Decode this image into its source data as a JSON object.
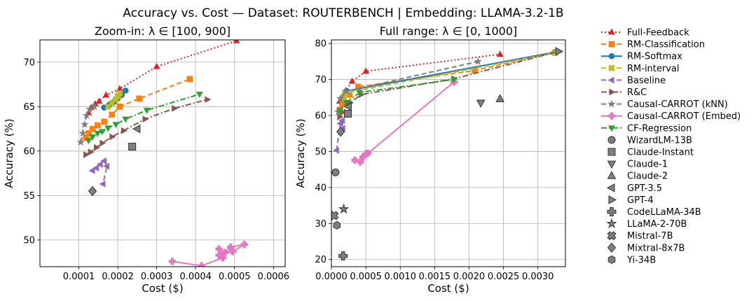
{
  "figure": {
    "suptitle": "Accuracy vs. Cost — Dataset: ROUTERBENCH | Embedding: LLAMA-3.2-1B"
  },
  "chart_data": [
    {
      "type": "line",
      "title": "Zoom-in: λ ∈ [100, 900]",
      "xlabel": "Cost ($)",
      "ylabel": "Accuracy (%)",
      "xlim": [
        0.0,
        0.00063
      ],
      "ylim": [
        47,
        72.5
      ],
      "xticks": [
        0.0001,
        0.0002,
        0.0003,
        0.0004,
        0.0005,
        0.0006
      ],
      "xtick_labels": [
        "0.0001",
        "0.0002",
        "0.0003",
        "0.0004",
        "0.0005",
        "0.0006"
      ],
      "yticks": [
        50,
        55,
        60,
        65,
        70
      ],
      "ytick_labels": [
        "50",
        "55",
        "60",
        "65",
        "70"
      ],
      "grid": true,
      "series": [
        {
          "name": "Full-Feedback",
          "color": "#d62728",
          "style": "dotted",
          "marker": "triangle-up",
          "points": [
            [
              0.000125,
              64.3
            ],
            [
              0.000132,
              64.9
            ],
            [
              0.000142,
              65.3
            ],
            [
              0.000152,
              65.6
            ],
            [
              0.00017,
              66.3
            ],
            [
              0.000205,
              67.0
            ],
            [
              0.0003,
              69.5
            ],
            [
              0.000505,
              72.4
            ]
          ]
        },
        {
          "name": "RM-Classification",
          "color": "#ff7f0e",
          "style": "dashed",
          "marker": "square",
          "points": [
            [
              0.000118,
              61.5
            ],
            [
              0.000125,
              62.0
            ],
            [
              0.000135,
              62.5
            ],
            [
              0.000148,
              62.9
            ],
            [
              0.000165,
              63.3
            ],
            [
              0.000185,
              64.1
            ],
            [
              0.000205,
              65.0
            ],
            [
              0.000255,
              65.9
            ],
            [
              0.000385,
              68.1
            ]
          ]
        },
        {
          "name": "RM-Softmax",
          "color": "#1f77b4",
          "style": "solid",
          "marker": "circle",
          "points": [
            [
              0.000165,
              64.9
            ],
            [
              0.000178,
              65.2
            ],
            [
              0.00019,
              65.5
            ],
            [
              0.0002,
              65.9
            ],
            [
              0.00021,
              66.3
            ],
            [
              0.00022,
              66.8
            ]
          ]
        },
        {
          "name": "RM-interval",
          "color": "#bcbd22",
          "style": "dashed",
          "marker": "x",
          "points": [
            [
              0.000175,
              65.0
            ],
            [
              0.000185,
              65.4
            ],
            [
              0.000195,
              65.8
            ],
            [
              0.0002,
              66.2
            ],
            [
              0.000205,
              66.5
            ]
          ]
        },
        {
          "name": "Baseline",
          "color": "#9467bd",
          "style": "dashed",
          "marker": "triangle-left",
          "points": [
            [
              0.000135,
              57.8
            ],
            [
              0.000145,
              58.1
            ],
            [
              0.000155,
              58.5
            ],
            [
              0.000165,
              58.9
            ],
            [
              0.000172,
              58.3
            ],
            [
              0.000162,
              56.3
            ]
          ]
        },
        {
          "name": "R&C",
          "color": "#8c564b",
          "style": "dashdot",
          "marker": "triangle-right",
          "points": [
            [
              0.000118,
              59.6
            ],
            [
              0.00013,
              59.9
            ],
            [
              0.000145,
              60.4
            ],
            [
              0.00016,
              60.9
            ],
            [
              0.000185,
              61.6
            ],
            [
              0.000215,
              62.3
            ],
            [
              0.00027,
              63.6
            ],
            [
              0.000345,
              64.8
            ],
            [
              0.00043,
              65.8
            ]
          ]
        },
        {
          "name": "Causal-CARROT (kNN)",
          "color": "#7f7f7f",
          "style": "dashed",
          "marker": "star",
          "points": [
            [
              0.000105,
              61.0
            ],
            [
              0.00011,
              62.0
            ],
            [
              0.000115,
              63.0
            ],
            [
              0.00012,
              64.0
            ],
            [
              0.000128,
              64.7
            ],
            [
              0.00014,
              65.0
            ]
          ]
        },
        {
          "name": "Causal-CARROT (Embed)",
          "color": "#e377c2",
          "style": "solid",
          "marker": "plus",
          "points": [
            [
              0.00034,
              47.6
            ],
            [
              0.000415,
              47.1
            ],
            [
              0.00047,
              48.0
            ],
            [
              0.00046,
              49.0
            ],
            [
              0.000475,
              48.6
            ],
            [
              0.00049,
              49.2
            ],
            [
              0.000525,
              49.5
            ],
            [
              0.000495,
              48.7
            ],
            [
              0.00046,
              48.3
            ]
          ]
        },
        {
          "name": "CF-Regression",
          "color": "#2ca02c",
          "style": "dashdot",
          "marker": "triangle-down",
          "points": [
            [
              0.000125,
              61.2
            ],
            [
              0.000135,
              61.6
            ],
            [
              0.000148,
              62.0
            ],
            [
              0.00016,
              62.2
            ],
            [
              0.000175,
              62.6
            ],
            [
              0.000195,
              63.0
            ],
            [
              0.00022,
              63.6
            ],
            [
              0.000275,
              64.6
            ],
            [
              0.00041,
              66.4
            ]
          ]
        }
      ],
      "single_points": [
        {
          "name": "Claude-Instant",
          "marker": "square",
          "x": 0.000237,
          "y": 60.5
        },
        {
          "name": "GPT-3.5",
          "marker": "triangle-left",
          "x": 0.00025,
          "y": 62.5
        },
        {
          "name": "Mixtral-8x7B",
          "marker": "diamond",
          "x": 0.000135,
          "y": 55.5
        }
      ]
    },
    {
      "type": "line",
      "title": "Full range: λ ∈ [0, 1000]",
      "xlabel": "Cost ($)",
      "ylabel": "Accuracy (%)",
      "xlim": [
        0.0,
        0.0034
      ],
      "ylim": [
        18,
        81
      ],
      "xticks": [
        0.0,
        0.0005,
        0.001,
        0.0015,
        0.002,
        0.0025,
        0.003
      ],
      "xtick_labels": [
        "0.0000",
        "0.0005",
        "0.0010",
        "0.0015",
        "0.0020",
        "0.0025",
        "0.0030"
      ],
      "yticks": [
        20,
        30,
        40,
        50,
        60,
        70,
        80
      ],
      "ytick_labels": [
        "20",
        "30",
        "40",
        "50",
        "60",
        "70",
        "80"
      ],
      "grid": true,
      "series": [
        {
          "name": "Full-Feedback",
          "color": "#d62728",
          "style": "dotted",
          "marker": "triangle-up",
          "points": [
            [
              0.00012,
              64.0
            ],
            [
              0.00016,
              65.3
            ],
            [
              0.00021,
              66.9
            ],
            [
              0.0003,
              69.5
            ],
            [
              0.0005,
              72.3
            ],
            [
              0.00245,
              77.0
            ]
          ]
        },
        {
          "name": "RM-Classification",
          "color": "#ff7f0e",
          "style": "dashed",
          "marker": "square",
          "points": [
            [
              0.00012,
              61.6
            ],
            [
              0.00016,
              63.2
            ],
            [
              0.00026,
              65.8
            ],
            [
              0.00039,
              68.0
            ],
            [
              0.00208,
              72.5
            ],
            [
              0.00325,
              77.5
            ]
          ]
        },
        {
          "name": "RM-Softmax",
          "color": "#1f77b4",
          "style": "solid",
          "marker": "circle",
          "points": [
            [
              0.00017,
              65.0
            ],
            [
              0.00022,
              66.8
            ],
            [
              0.00325,
              77.6
            ]
          ]
        },
        {
          "name": "RM-interval",
          "color": "#bcbd22",
          "style": "dashed",
          "marker": "x",
          "points": [
            [
              0.00018,
              65.0
            ],
            [
              0.0002,
              66.2
            ],
            [
              0.00324,
              77.4
            ]
          ]
        },
        {
          "name": "Baseline",
          "color": "#9467bd",
          "style": "dashed",
          "marker": "triangle-left",
          "points": [
            [
              7.5e-05,
              50.3
            ],
            [
              0.00013,
              57.8
            ],
            [
              0.00016,
              58.6
            ],
            [
              0.000165,
              56.4
            ]
          ]
        },
        {
          "name": "R&C",
          "color": "#8c564b",
          "style": "dashdot",
          "marker": "triangle-right",
          "points": [
            [
              0.00012,
              59.6
            ],
            [
              0.00016,
              60.9
            ],
            [
              0.00027,
              63.5
            ],
            [
              0.00043,
              65.8
            ],
            [
              0.00178,
              70.2
            ],
            [
              0.0033,
              77.8
            ]
          ]
        },
        {
          "name": "Causal-CARROT (kNN)",
          "color": "#7f7f7f",
          "style": "dashed",
          "marker": "star",
          "points": [
            [
              0.0001,
              61.0
            ],
            [
              0.00013,
              64.7
            ],
            [
              0.00021,
              66.7
            ],
            [
              0.00213,
              75.0
            ]
          ]
        },
        {
          "name": "Causal-CARROT (Embed)",
          "color": "#e377c2",
          "style": "solid",
          "marker": "plus",
          "points": [
            [
              0.00034,
              47.6
            ],
            [
              0.00042,
              47.1
            ],
            [
              0.00046,
              48.5
            ],
            [
              0.0005,
              49.3
            ],
            [
              0.00053,
              49.5
            ],
            [
              0.00178,
              69.3
            ]
          ]
        },
        {
          "name": "CF-Regression",
          "color": "#2ca02c",
          "style": "dashdot",
          "marker": "triangle-down",
          "points": [
            [
              0.00012,
              61.2
            ],
            [
              0.00022,
              63.6
            ],
            [
              0.00041,
              66.4
            ],
            [
              0.00178,
              70.0
            ]
          ]
        }
      ],
      "single_points": [
        {
          "name": "WizardLM-13B",
          "marker": "circle",
          "x": 6e-05,
          "y": 44.2
        },
        {
          "name": "Claude-Instant",
          "marker": "square",
          "x": 0.00024,
          "y": 60.5
        },
        {
          "name": "Claude-1",
          "marker": "triangle-down",
          "x": 0.00217,
          "y": 63.5
        },
        {
          "name": "Claude-2",
          "marker": "triangle-up",
          "x": 0.00245,
          "y": 64.6
        },
        {
          "name": "GPT-3.5",
          "marker": "triangle-left",
          "x": 0.00025,
          "y": 62.5
        },
        {
          "name": "GPT-4",
          "marker": "triangle-right",
          "x": 0.0033,
          "y": 77.8
        },
        {
          "name": "CodeLLaMA-34B",
          "marker": "plus",
          "x": 0.00017,
          "y": 21.0
        },
        {
          "name": "LLaMA-2-70B",
          "marker": "star",
          "x": 0.00018,
          "y": 34.0
        },
        {
          "name": "Mistral-7B",
          "marker": "x",
          "x": 4e-05,
          "y": 32.2
        },
        {
          "name": "Mixtral-8x7B",
          "marker": "diamond",
          "x": 0.000135,
          "y": 55.5
        },
        {
          "name": "Yi-34B",
          "marker": "hexagon",
          "x": 8e-05,
          "y": 29.5
        }
      ]
    }
  ],
  "legend": {
    "placement": "right outside",
    "items": [
      {
        "label": "Full-Feedback",
        "color": "#d62728",
        "style": "dotted",
        "marker": "triangle-up"
      },
      {
        "label": "RM-Classification",
        "color": "#ff7f0e",
        "style": "dashed",
        "marker": "square"
      },
      {
        "label": "RM-Softmax",
        "color": "#1f77b4",
        "style": "solid",
        "marker": "circle"
      },
      {
        "label": "RM-interval",
        "color": "#bcbd22",
        "style": "dashed",
        "marker": "x"
      },
      {
        "label": "Baseline",
        "color": "#9467bd",
        "style": "dashed",
        "marker": "triangle-left"
      },
      {
        "label": "R&C",
        "color": "#8c564b",
        "style": "dashdot",
        "marker": "triangle-right"
      },
      {
        "label": "Causal-CARROT (kNN)",
        "color": "#7f7f7f",
        "style": "dashed",
        "marker": "star"
      },
      {
        "label": "Causal-CARROT (Embed)",
        "color": "#e377c2",
        "style": "solid",
        "marker": "plus"
      },
      {
        "label": "CF-Regression",
        "color": "#2ca02c",
        "style": "dashdot",
        "marker": "triangle-down"
      },
      {
        "label": "WizardLM-13B",
        "color": "#808080",
        "style": "none",
        "marker": "circle"
      },
      {
        "label": "Claude-Instant",
        "color": "#808080",
        "style": "none",
        "marker": "square"
      },
      {
        "label": "Claude-1",
        "color": "#808080",
        "style": "none",
        "marker": "triangle-down"
      },
      {
        "label": "Claude-2",
        "color": "#808080",
        "style": "none",
        "marker": "triangle-up"
      },
      {
        "label": "GPT-3.5",
        "color": "#808080",
        "style": "none",
        "marker": "triangle-left"
      },
      {
        "label": "GPT-4",
        "color": "#808080",
        "style": "none",
        "marker": "triangle-right"
      },
      {
        "label": "CodeLLaMA-34B",
        "color": "#808080",
        "style": "none",
        "marker": "plus"
      },
      {
        "label": "LLaMA-2-70B",
        "color": "#808080",
        "style": "none",
        "marker": "star"
      },
      {
        "label": "Mistral-7B",
        "color": "#808080",
        "style": "none",
        "marker": "x"
      },
      {
        "label": "Mixtral-8x7B",
        "color": "#808080",
        "style": "none",
        "marker": "diamond"
      },
      {
        "label": "Yi-34B",
        "color": "#808080",
        "style": "none",
        "marker": "hexagon"
      }
    ]
  }
}
